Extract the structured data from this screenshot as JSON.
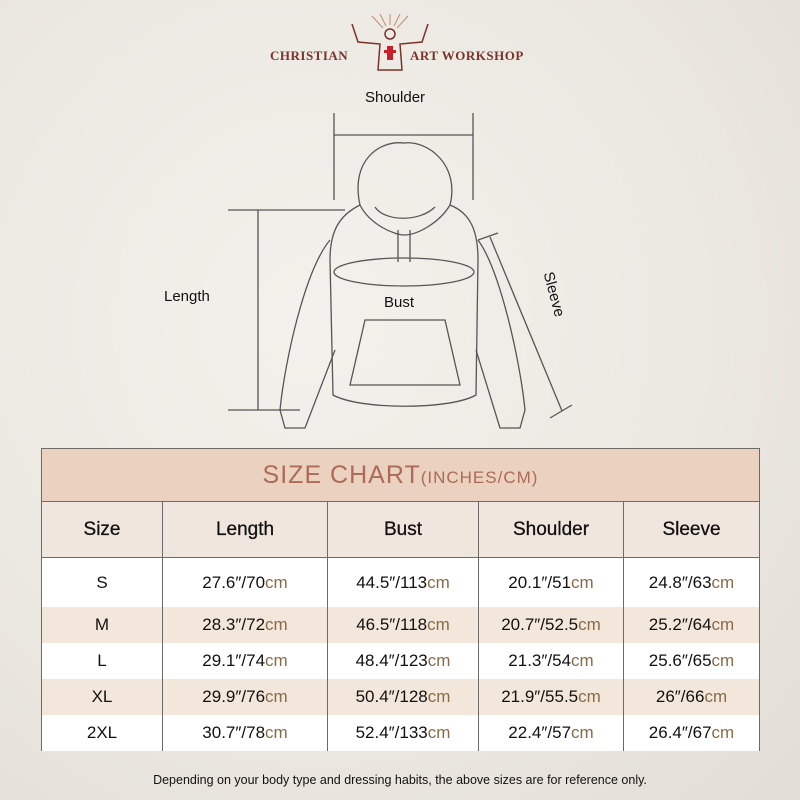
{
  "brand": {
    "left": "CHRISTIAN",
    "right": "ART WORKSHOP",
    "logo_icon": "jesus-open-arms-icon"
  },
  "diagram": {
    "shoulder": "Shoulder",
    "length": "Length",
    "bust": "Bust",
    "sleeve": "Sleeve"
  },
  "table": {
    "title": "SIZE CHART",
    "title_sub": "(INCHES/CM)",
    "headers": [
      "Size",
      "Length",
      "Bust",
      "Shoulder",
      "Sleeve"
    ],
    "rows": [
      {
        "size": "S",
        "cells": [
          [
            "27.6″/70",
            "cm"
          ],
          [
            "44.5″/113",
            "cm"
          ],
          [
            "20.1″/51",
            "cm"
          ],
          [
            "24.8″/63",
            "cm"
          ]
        ]
      },
      {
        "size": "M",
        "cells": [
          [
            "28.3″/72",
            "cm"
          ],
          [
            "46.5″/118",
            "cm"
          ],
          [
            "20.7″/52.5",
            "cm"
          ],
          [
            "25.2″/64",
            "cm"
          ]
        ]
      },
      {
        "size": "L",
        "cells": [
          [
            "29.1″/74",
            "cm"
          ],
          [
            "48.4″/123",
            "cm"
          ],
          [
            "21.3″/54",
            "cm"
          ],
          [
            "25.6″/65",
            "cm"
          ]
        ]
      },
      {
        "size": "XL",
        "cells": [
          [
            "29.9″/76",
            "cm"
          ],
          [
            "50.4″/128",
            "cm"
          ],
          [
            "21.9″/55.5",
            "cm"
          ],
          [
            "26″/66",
            "cm"
          ]
        ]
      },
      {
        "size": "2XL",
        "cells": [
          [
            "30.7″/78",
            "cm"
          ],
          [
            "52.4″/133",
            "cm"
          ],
          [
            "22.4″/57",
            "cm"
          ],
          [
            "26.4″/67",
            "cm"
          ]
        ]
      }
    ]
  },
  "note": "Depending on your body type and dressing habits, the above sizes are for reference only.",
  "colors": {
    "title_bg": "#ebd1c0",
    "title_text": "#ad6a55",
    "header_bg": "#f1e6dd",
    "stripe": "#f3e7dc",
    "cm": "#8a6b46",
    "brand": "#7a3328"
  }
}
